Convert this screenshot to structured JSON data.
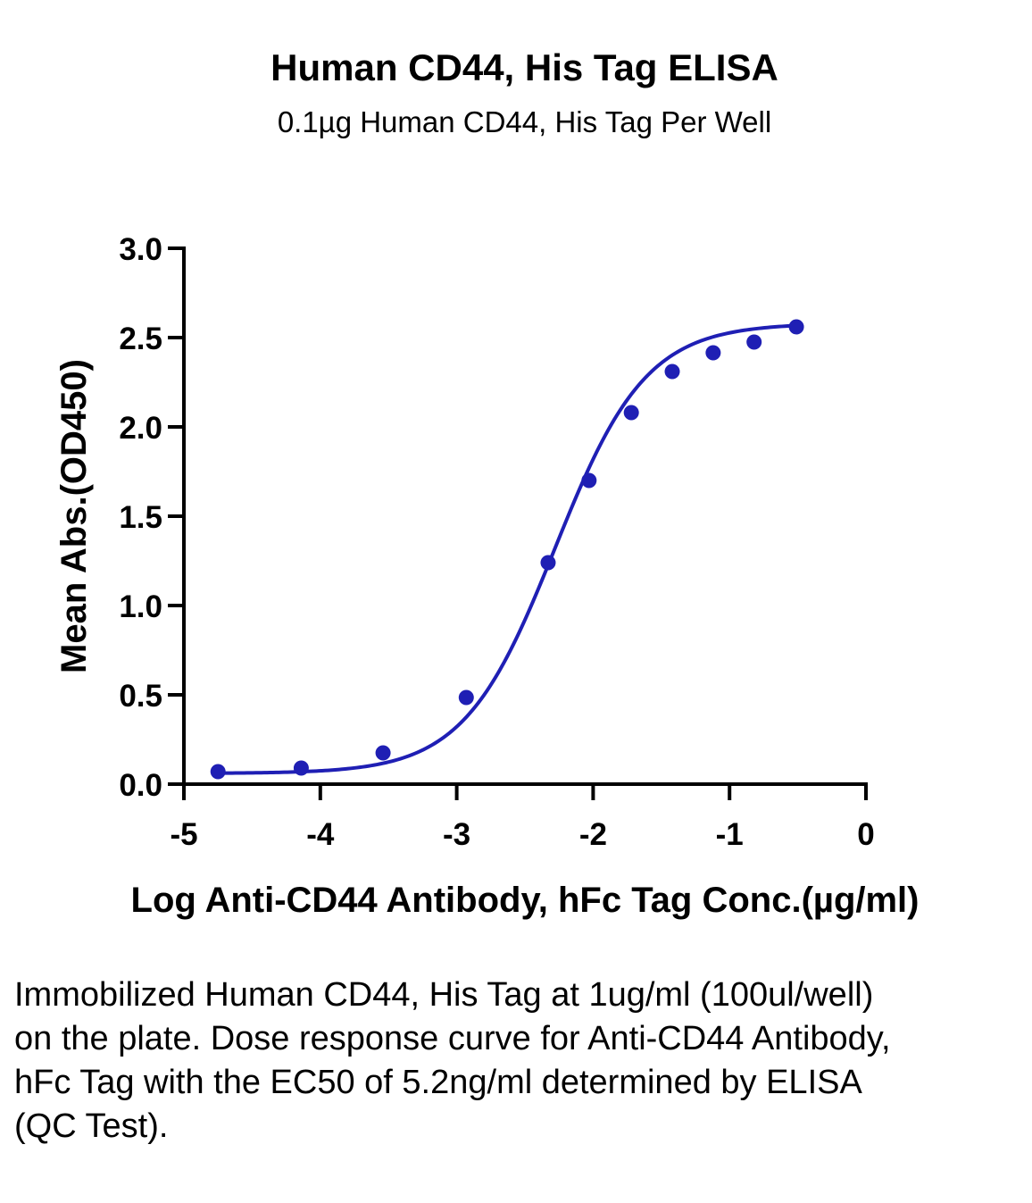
{
  "title": "Human CD44, His Tag ELISA",
  "subtitle": "0.1µg Human CD44, His Tag Per Well",
  "caption": "Immobilized Human CD44, His Tag at 1ug/ml (100ul/well) on the plate. Dose response curve for Anti-CD44 Antibody, hFc Tag with the EC50 of 5.2ng/ml determined by ELISA (QC Test).",
  "chart_data": {
    "type": "scatter",
    "title": "Human CD44, His Tag ELISA",
    "subtitle": "0.1µg Human CD44, His Tag Per Well",
    "xlabel": "Log Anti-CD44 Antibody, hFc Tag Conc.(µg/ml)",
    "ylabel": "Mean Abs.(OD450)",
    "xlim": [
      -5,
      0
    ],
    "ylim": [
      0,
      3.0
    ],
    "x_ticks": [
      -5,
      -4,
      -3,
      -2,
      -1,
      0
    ],
    "x_tick_labels": [
      "-5",
      "-4",
      "-3",
      "-2",
      "-1",
      "0"
    ],
    "y_ticks": [
      0,
      0.5,
      1.0,
      1.5,
      2.0,
      2.5,
      3.0
    ],
    "y_tick_labels": [
      "0.0",
      "0.5",
      "1.0",
      "1.5",
      "2.0",
      "2.5",
      "3.0"
    ],
    "grid": false,
    "legend": "none",
    "color": "#1f1fb4",
    "series": [
      {
        "points": [
          {
            "x": -4.75,
            "y": 0.07
          },
          {
            "x": -4.14,
            "y": 0.09
          },
          {
            "x": -3.54,
            "y": 0.175
          },
          {
            "x": -2.93,
            "y": 0.485
          },
          {
            "x": -2.33,
            "y": 1.24
          },
          {
            "x": -2.03,
            "y": 1.7
          },
          {
            "x": -1.72,
            "y": 2.08
          },
          {
            "x": -1.42,
            "y": 2.31
          },
          {
            "x": -1.12,
            "y": 2.415
          },
          {
            "x": -0.82,
            "y": 2.475
          },
          {
            "x": -0.51,
            "y": 2.56
          }
        ]
      }
    ],
    "fit": {
      "model": "4PL",
      "bottom": 0.06,
      "top": 2.58,
      "log_ec50": -2.28,
      "hill_slope": 1.3
    }
  }
}
